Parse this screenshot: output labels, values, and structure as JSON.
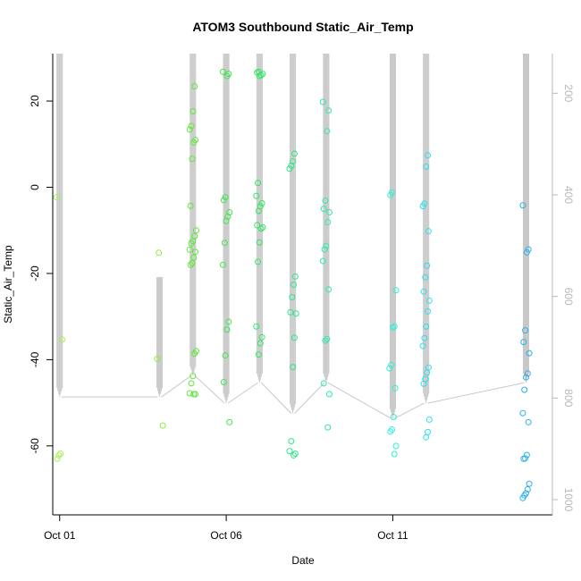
{
  "chart_data": {
    "type": "scatter",
    "title": "ATOM3 Southbound Static_Air_Temp",
    "xlabel": "Date",
    "ylabel": "Static_Air_Temp",
    "x_axis": {
      "type": "date",
      "range": [
        "2016-09-30T19:00",
        "2016-10-15T19:00"
      ],
      "ticks": [
        {
          "date": "2016-10-01T00:00",
          "label": "Oct 01"
        },
        {
          "date": "2016-10-06T00:00",
          "label": "Oct 06"
        },
        {
          "date": "2016-10-11T00:00",
          "label": "Oct 11"
        }
      ]
    },
    "y_axis": {
      "range": [
        -76,
        31
      ],
      "ticks": [
        20,
        0,
        -20,
        -40,
        -60
      ]
    },
    "y2_axis": {
      "description": "pressure profile overlay (gray lines), inverted",
      "range": [
        122,
        1030
      ],
      "ticks": [
        200,
        400,
        600,
        800,
        1000
      ]
    },
    "grid": false,
    "legend": "none",
    "colors": {
      "profile_line": "#c8c8c8",
      "axis": "#000000",
      "right_axis": "#b8b8b8"
    },
    "flights": [
      {
        "date": "2016-10-01T00:00",
        "color": "#a6f24e",
        "temps": [
          -2.3,
          -35.3,
          -61.8,
          -62.2,
          -63.0
        ],
        "profile_top": 31,
        "profile_bottom": 798
      },
      {
        "date": "2016-10-04T00:00",
        "color": "#86ef3a",
        "temps": [
          -15.2,
          -39.8,
          -55.3
        ],
        "profile_top": 562,
        "profile_bottom": 798
      },
      {
        "date": "2016-10-05T00:00",
        "color": "#5ee838",
        "temps": [
          23.4,
          17.6,
          14.2,
          13.4,
          11.0,
          10.4,
          6.6,
          -4.3,
          -10.0,
          -11.3,
          -12.5,
          -13.0,
          -14.5,
          -15.0,
          -16.3,
          -17.6,
          -18.0,
          -38.0,
          -38.6,
          -43.8,
          -45.5,
          -47.8,
          -48.0,
          -48.0
        ],
        "profile_top": 122,
        "profile_bottom": 756
      },
      {
        "date": "2016-10-06T00:00",
        "color": "#3de84a",
        "temps": [
          26.8,
          26.3,
          25.8,
          -2.3,
          -3.0,
          -5.8,
          -6.8,
          -7.8,
          -12.9,
          -18.0,
          -31.2,
          -33.0,
          -39.0,
          -45.2,
          -54.5
        ],
        "profile_top": 122,
        "profile_bottom": 810
      },
      {
        "date": "2016-10-07T00:00",
        "color": "#30e864",
        "temps": [
          26.8,
          26.6,
          26.3,
          26.0,
          25.8,
          1.0,
          -2.0,
          -3.7,
          -4.4,
          -5.5,
          -8.8,
          -9.3,
          -9.6,
          -12.8,
          -17.3,
          -32.3,
          -34.8,
          -36.2,
          -38.8
        ],
        "profile_top": 122,
        "profile_bottom": 770
      },
      {
        "date": "2016-10-08T00:00",
        "color": "#2ee88a",
        "temps": [
          7.8,
          6.0,
          5.0,
          4.3,
          -20.7,
          -22.6,
          -25.5,
          -29.0,
          -29.3,
          -34.9,
          -41.7,
          -58.9,
          -61.2,
          -61.8,
          -62.2
        ],
        "profile_top": 122,
        "profile_bottom": 830
      },
      {
        "date": "2016-10-09T00:00",
        "color": "#30eaa4",
        "temps": [
          19.8,
          17.8,
          13.0,
          -3.1,
          -5.0,
          -5.8,
          -8.1,
          -13.6,
          -14.4,
          -17.1,
          -23.7,
          -35.2,
          -35.6,
          -45.5,
          -48.0,
          -55.7
        ],
        "profile_top": 122,
        "profile_bottom": 770
      },
      {
        "date": "2016-10-11T00:00",
        "color": "#2ef0d8",
        "temps": [
          -1.2,
          -1.8,
          -23.9,
          -32.3,
          -32.5,
          -41.2,
          -42.0,
          -46.6,
          -53.3,
          -56.2,
          -56.7,
          -60.0,
          -61.9
        ],
        "profile_top": 122,
        "profile_bottom": 840
      },
      {
        "date": "2016-10-12T00:00",
        "color": "#2ae0ec",
        "temps": [
          7.4,
          4.8,
          -3.8,
          -4.4,
          -10.2,
          -18.2,
          -20.9,
          -24.2,
          -26.3,
          -28.8,
          -32.3,
          -35.0,
          -36.8,
          -41.8,
          -43.0,
          -44.5,
          -45.6,
          -53.9,
          -56.8,
          -58.0
        ],
        "profile_top": 122,
        "profile_bottom": 810
      },
      {
        "date": "2016-10-15T00:00",
        "color": "#2ab0ec",
        "temps": [
          -4.2,
          -14.4,
          -15.1,
          -33.2,
          -35.9,
          -38.5,
          -43.2,
          -44.1,
          -47.0,
          -52.4,
          -54.5,
          -62.1,
          -62.9,
          -63.0,
          -68.8,
          -70.1,
          -71.0,
          -71.5,
          -72.1
        ],
        "profile_top": 122,
        "profile_bottom": 770
      }
    ]
  }
}
